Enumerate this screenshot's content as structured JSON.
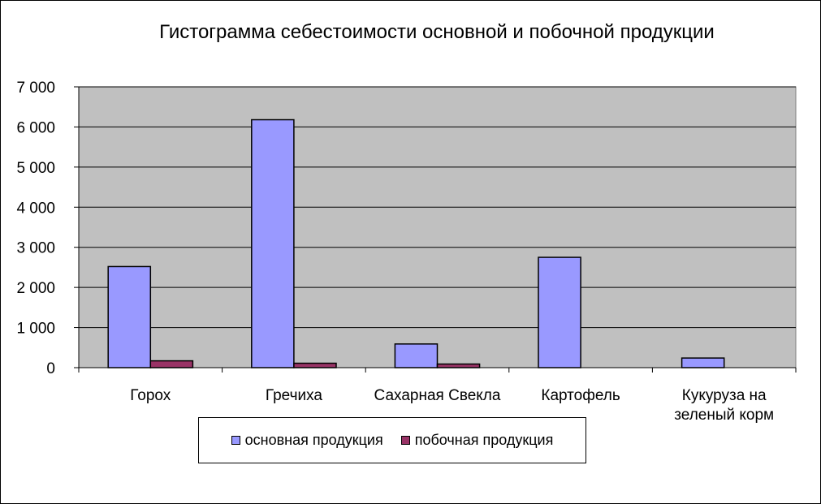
{
  "chart_data": {
    "type": "bar",
    "title": "Гистограмма себестоимости основной и побочной продукции",
    "categories": [
      [
        "Горох"
      ],
      [
        "Гречиха"
      ],
      [
        "Сахарная Свекла"
      ],
      [
        "Картофель"
      ],
      [
        "Кукуруза на",
        "зеленый корм"
      ]
    ],
    "series": [
      {
        "name": "основная продукция",
        "values": [
          2520,
          6180,
          590,
          2750,
          240
        ],
        "color": "#9999ff"
      },
      {
        "name": "побочная продукция",
        "values": [
          170,
          110,
          90,
          0,
          0
        ],
        "color": "#993366"
      }
    ],
    "ylim": [
      0,
      7000
    ],
    "yticks": [
      0,
      1000,
      2000,
      3000,
      4000,
      5000,
      6000,
      7000
    ],
    "ytick_labels": [
      "0",
      "1 000",
      "2 000",
      "3 000",
      "4 000",
      "5 000",
      "6 000",
      "7 000"
    ],
    "grid": true,
    "plot_background": "#c0c0c0",
    "legend_position": "bottom"
  }
}
